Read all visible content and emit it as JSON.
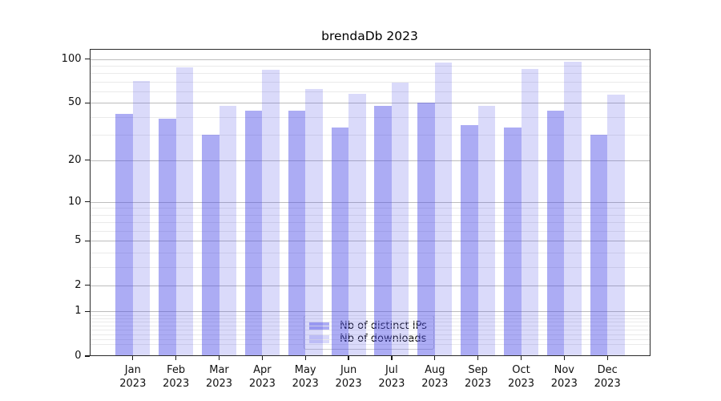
{
  "title": "brendaDb 2023",
  "chart_data": {
    "type": "bar",
    "title": "brendaDb 2023",
    "categories": [
      {
        "month": "Jan",
        "year": "2023"
      },
      {
        "month": "Feb",
        "year": "2023"
      },
      {
        "month": "Mar",
        "year": "2023"
      },
      {
        "month": "Apr",
        "year": "2023"
      },
      {
        "month": "May",
        "year": "2023"
      },
      {
        "month": "Jun",
        "year": "2023"
      },
      {
        "month": "Jul",
        "year": "2023"
      },
      {
        "month": "Aug",
        "year": "2023"
      },
      {
        "month": "Sep",
        "year": "2023"
      },
      {
        "month": "Oct",
        "year": "2023"
      },
      {
        "month": "Nov",
        "year": "2023"
      },
      {
        "month": "Dec",
        "year": "2023"
      }
    ],
    "series": [
      {
        "name": "Nb of distinct IPs",
        "color": "rgba(70,70,230,0.45)",
        "values": [
          42,
          39,
          30,
          44,
          44,
          34,
          48,
          50,
          35,
          34,
          44,
          30
        ]
      },
      {
        "name": "Nb of downloads",
        "color": "rgba(70,70,230,0.2)",
        "values": [
          71,
          88,
          48,
          84,
          62,
          58,
          69,
          95,
          48,
          86,
          96,
          57
        ]
      }
    ],
    "yscale": "log1p",
    "yticks": [
      0,
      1,
      2,
      5,
      10,
      20,
      50,
      100
    ],
    "minor_yticks": [
      0.2,
      0.3,
      0.4,
      0.5,
      0.6,
      0.7,
      0.8,
      0.9,
      3,
      4,
      6,
      7,
      8,
      9,
      30,
      40,
      60,
      70,
      80,
      90
    ],
    "ylim": [
      0,
      117
    ],
    "xlabel": "",
    "ylabel": "",
    "grid": true,
    "legend_position": "lower center"
  }
}
